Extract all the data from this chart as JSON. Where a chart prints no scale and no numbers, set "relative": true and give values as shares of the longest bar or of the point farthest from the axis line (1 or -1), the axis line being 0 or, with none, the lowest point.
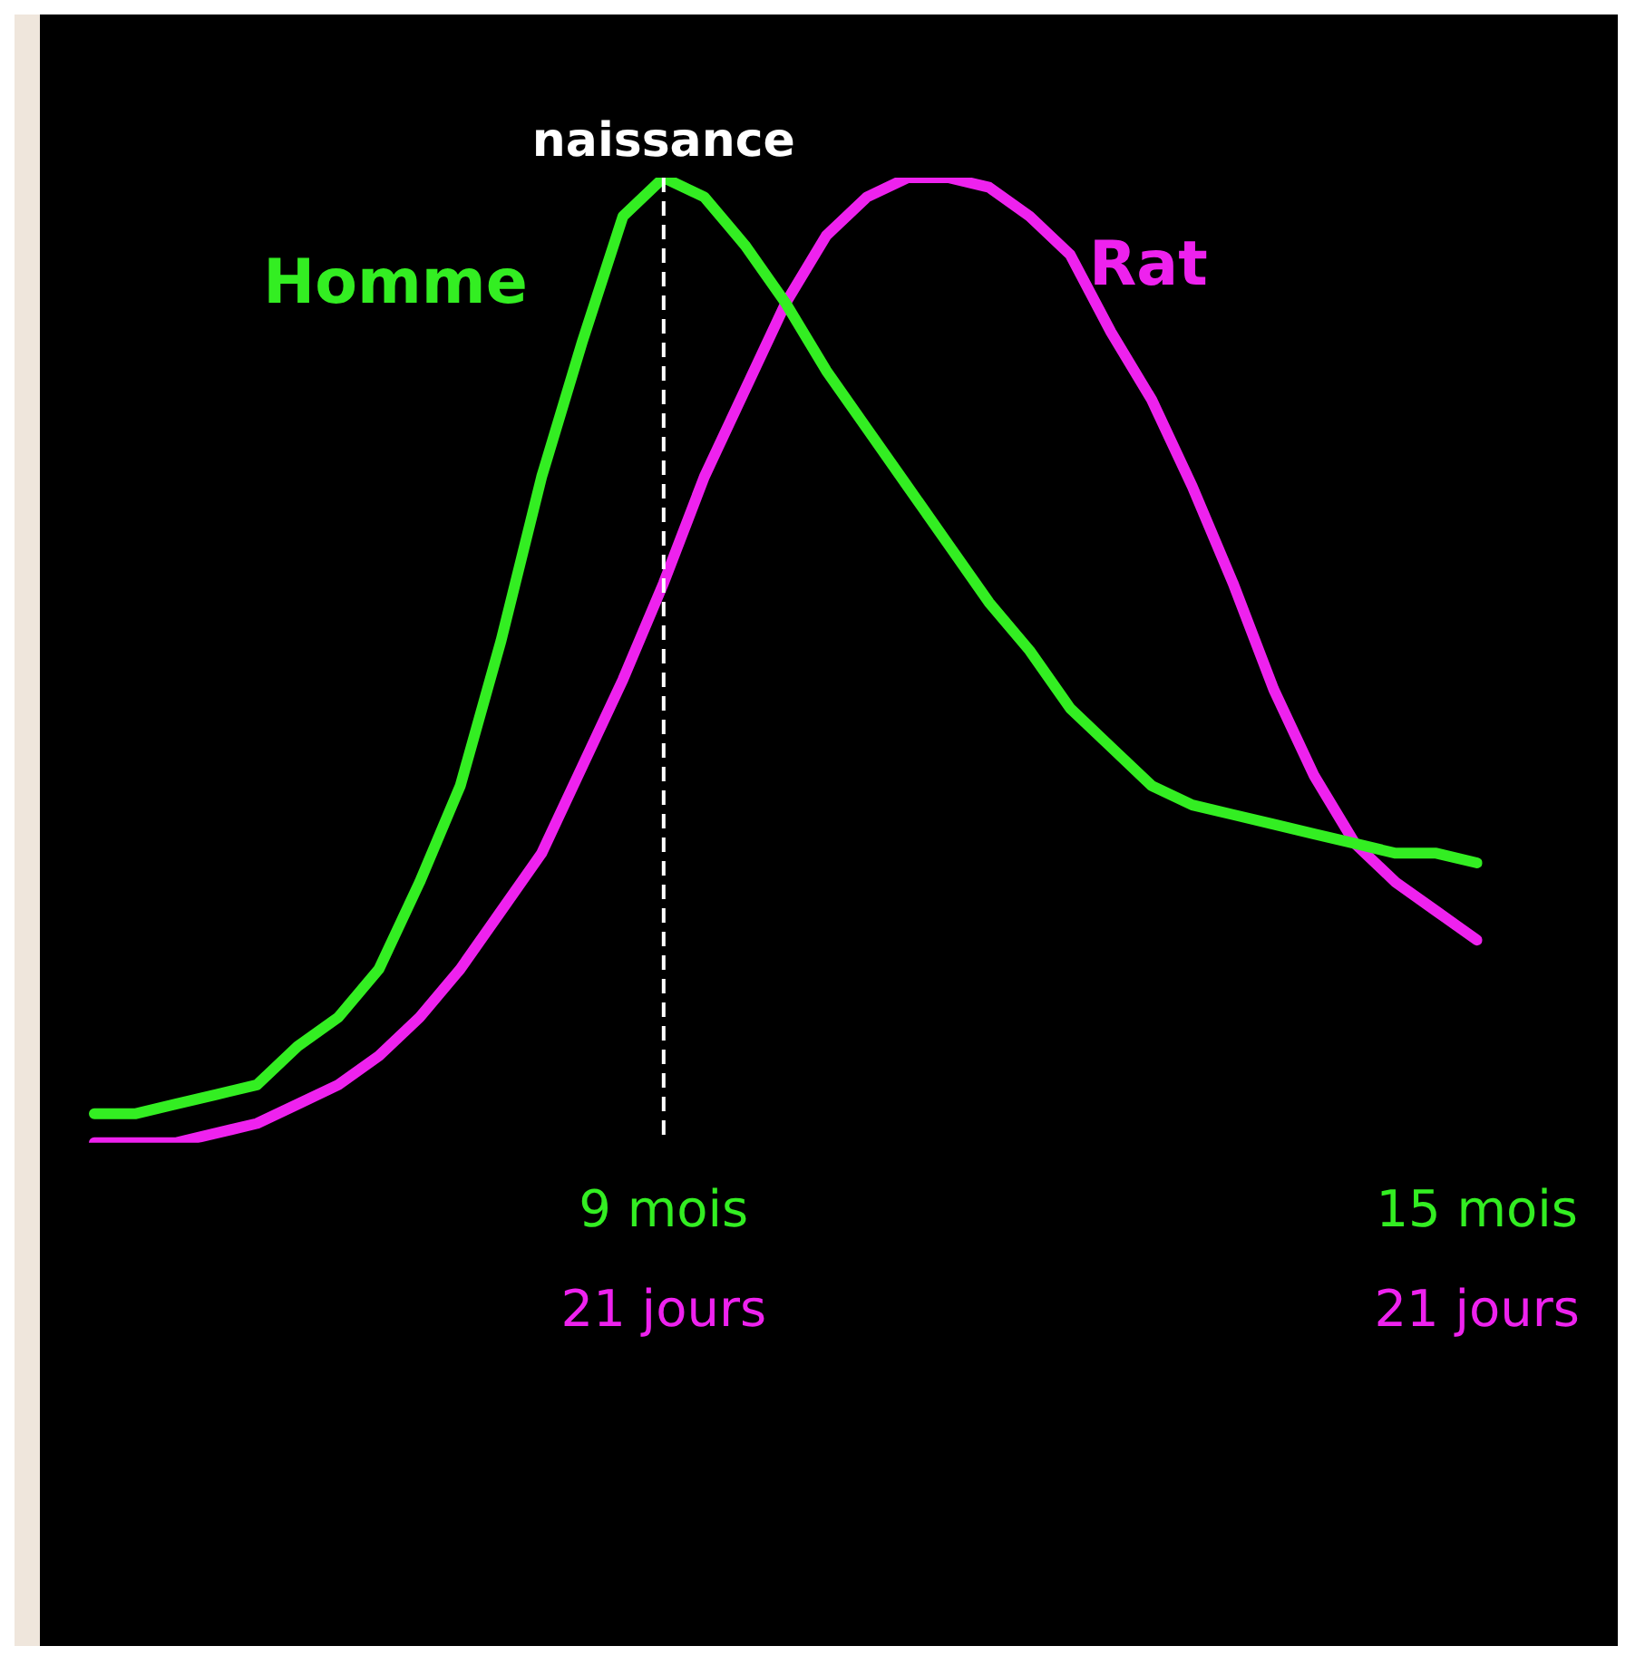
{
  "chart_data": {
    "type": "line",
    "relative": true,
    "legend": false,
    "grid": false,
    "marker": "none",
    "line_style": "solid",
    "tick_labels": "x",
    "categories": [
      null,
      null,
      null,
      null,
      null,
      null,
      null,
      null,
      null,
      null,
      null,
      null,
      null,
      null,
      "9 mois",
      null,
      null,
      null,
      null,
      null,
      null,
      null,
      null,
      null,
      null,
      null,
      null,
      null,
      null,
      null,
      null,
      null,
      null,
      null,
      "15 mois"
    ],
    "annotations": [
      "21 jours",
      "21 jours"
    ],
    "ref_lines": [
      {
        "axis": "x",
        "value": "9 mois",
        "label": "naissance",
        "color": "#ffffff",
        "line_style": "dashed"
      }
    ],
    "series": [
      {
        "name": "Homme",
        "color": "#33ee22",
        "values": [
          0.03,
          0.03,
          0.04,
          0.05,
          0.06,
          0.1,
          0.13,
          0.18,
          0.27,
          0.37,
          0.52,
          0.69,
          0.83,
          0.96,
          1,
          0.98,
          0.93,
          0.87,
          0.8,
          0.74,
          0.68,
          0.62,
          0.56,
          0.51,
          0.45,
          0.41,
          0.37,
          0.35,
          0.34,
          0.33,
          0.32,
          0.31,
          0.3,
          0.3,
          0.29
        ]
      },
      {
        "name": "Rat",
        "color": "#ee22ee",
        "values": [
          0,
          0,
          0,
          0.01,
          0.02,
          0.04,
          0.06,
          0.09,
          0.13,
          0.18,
          0.24,
          0.3,
          0.39,
          0.48,
          0.58,
          0.69,
          0.78,
          0.87,
          0.94,
          0.98,
          1,
          1,
          0.99,
          0.96,
          0.92,
          0.84,
          0.77,
          0.68,
          0.58,
          0.47,
          0.38,
          0.31,
          0.27,
          0.24,
          0.21
        ]
      }
    ]
  }
}
